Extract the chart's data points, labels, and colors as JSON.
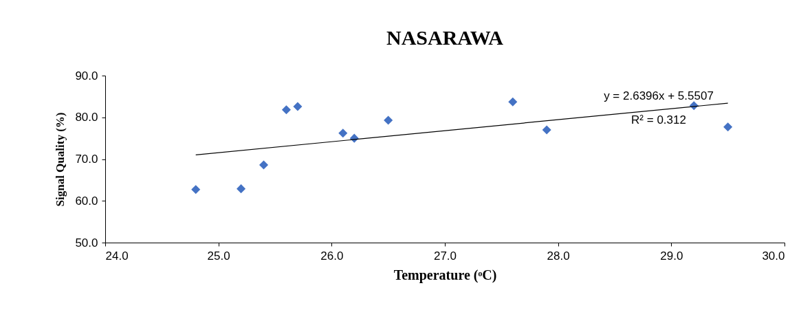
{
  "chart_data": {
    "type": "scatter",
    "title": "NASARAWA",
    "xlabel": "Temperature (ᵒC)",
    "ylabel": "Signal Quality (%)",
    "xlim": [
      24.0,
      30.0
    ],
    "xticks": [
      {
        "value": 24,
        "label": "24.0"
      },
      {
        "value": 25,
        "label": "25.0"
      },
      {
        "value": 26,
        "label": "26.0"
      },
      {
        "value": 27,
        "label": "27.0"
      },
      {
        "value": 28,
        "label": "28.0"
      },
      {
        "value": 29,
        "label": "29.0"
      },
      {
        "value": 30,
        "label": "30.0"
      }
    ],
    "ylim": [
      50.0,
      90.0
    ],
    "yticks": [
      {
        "value": 50,
        "label": "50.0"
      },
      {
        "value": 60,
        "label": "60.0"
      },
      {
        "value": 70,
        "label": "70.0"
      },
      {
        "value": 80,
        "label": "80.0"
      },
      {
        "value": 90,
        "label": "90.0"
      }
    ],
    "grid": false,
    "series": [
      {
        "marker": "diamond",
        "color": "#4472c4",
        "x": [
          24.8,
          25.2,
          25.4,
          25.6,
          25.7,
          26.1,
          26.2,
          26.5,
          27.6,
          27.9,
          29.2,
          29.5
        ],
        "values": [
          62.7,
          62.9,
          68.6,
          81.8,
          82.6,
          76.2,
          75.0,
          79.3,
          83.7,
          77.0,
          82.8,
          77.7
        ]
      },
      {
        "type": "line",
        "marker": "none",
        "color": "#000000",
        "x": [
          24.8,
          29.5
        ],
        "values": [
          71.0,
          83.4
        ]
      }
    ],
    "annotations": [
      "y = 2.6396x + 5.5507",
      "R² = 0.312"
    ]
  }
}
